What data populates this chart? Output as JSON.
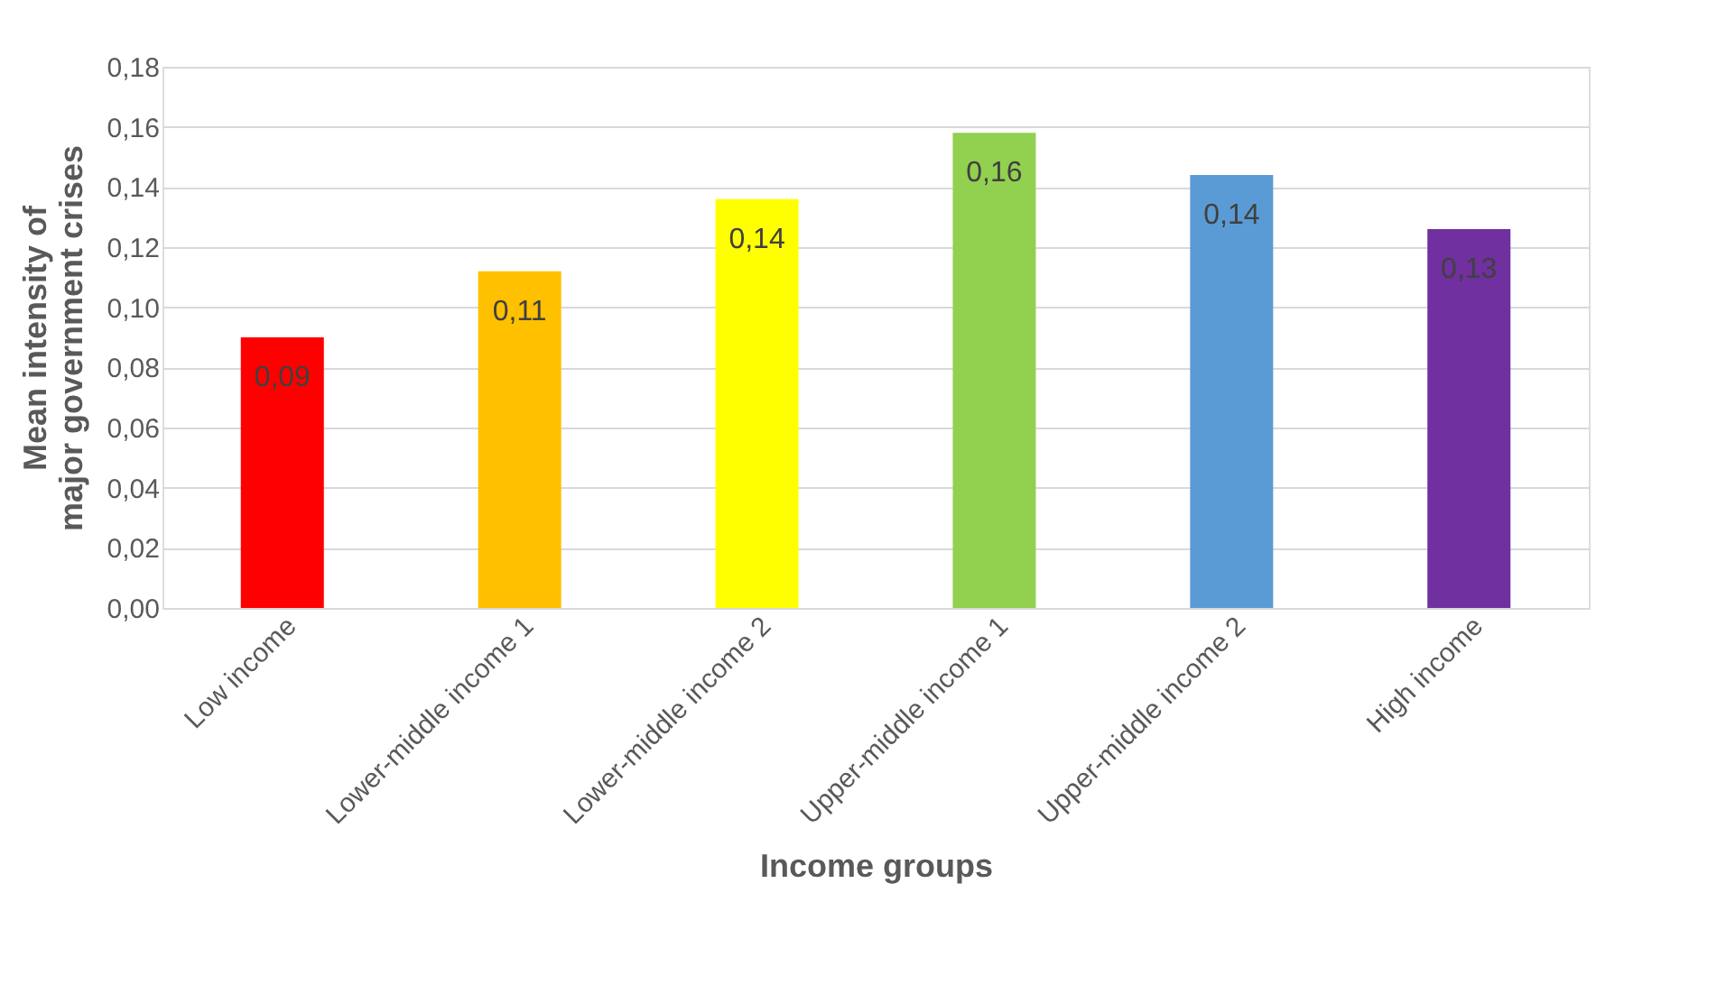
{
  "chart_data": {
    "type": "bar",
    "xlabel": "Income groups",
    "ylabel": "Mean intensity of major government crises",
    "categories": [
      "Low income",
      "Lower-middle income 1",
      "Lower-middle income 2",
      "Upper-middle income 1",
      "Upper-middle income 2",
      "High income"
    ],
    "values": [
      0.09,
      0.112,
      0.136,
      0.158,
      0.144,
      0.126
    ],
    "value_labels": [
      "0,09",
      "0,11",
      "0,14",
      "0,16",
      "0,14",
      "0,13"
    ],
    "colors": [
      "#ff0000",
      "#ffc000",
      "#ffff00",
      "#92d050",
      "#5b9bd5",
      "#7030a0"
    ],
    "ylim": [
      0,
      0.18
    ],
    "yticks": [
      {
        "value": 0,
        "label": "0,00"
      },
      {
        "value": 0.02,
        "label": "0,02"
      },
      {
        "value": 0.04,
        "label": "0,04"
      },
      {
        "value": 0.06,
        "label": "0,06"
      },
      {
        "value": 0.08,
        "label": "0,08"
      },
      {
        "value": 0.1,
        "label": "0,10"
      },
      {
        "value": 0.12,
        "label": "0,12"
      },
      {
        "value": 0.14,
        "label": "0,14"
      },
      {
        "value": 0.16,
        "label": "0,16"
      },
      {
        "value": 0.18,
        "label": "0,18"
      }
    ],
    "grid": "y"
  }
}
